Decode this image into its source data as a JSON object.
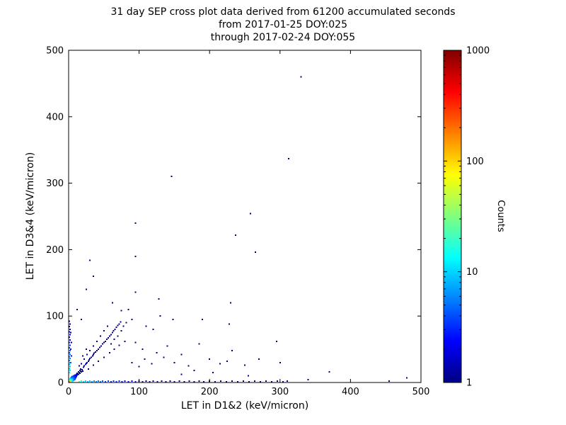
{
  "figure": {
    "background": "#ffffff",
    "frame_color": "#000000"
  },
  "chart_data": {
    "type": "scatter",
    "title": "31 day SEP cross plot data derived from 61200 accumulated seconds",
    "subtitle_from": "from 2017-01-25 DOY:025",
    "subtitle_through": "through 2017-02-24 DOY:055",
    "xlabel": "LET in D1&2 (keV/micron)",
    "ylabel": "LET in D3&4 (keV/micron)",
    "xlim": [
      0,
      500
    ],
    "ylim": [
      0,
      500
    ],
    "xticks": [
      0,
      100,
      200,
      300,
      400,
      500
    ],
    "yticks": [
      0,
      100,
      200,
      300,
      400,
      500
    ],
    "grid": false,
    "colorbar": {
      "label": "Counts",
      "scale": "log",
      "range": [
        1,
        1000
      ],
      "ticks": [
        1,
        10,
        100,
        1000
      ],
      "colormap": "jet",
      "stops": [
        {
          "pos": 0.0,
          "color": "#000080"
        },
        {
          "pos": 0.125,
          "color": "#0000ff"
        },
        {
          "pos": 0.375,
          "color": "#00ffff"
        },
        {
          "pos": 0.625,
          "color": "#ffff00"
        },
        {
          "pos": 0.875,
          "color": "#ff0000"
        },
        {
          "pos": 1.0,
          "color": "#800000"
        }
      ]
    },
    "points": [
      [
        0.5,
        0.5,
        800
      ],
      [
        1,
        1,
        400
      ],
      [
        2,
        1,
        200
      ],
      [
        1,
        2,
        200
      ],
      [
        2,
        2,
        150
      ],
      [
        3,
        1,
        100
      ],
      [
        1,
        3,
        100
      ],
      [
        3,
        2,
        80
      ],
      [
        2,
        3,
        80
      ],
      [
        3,
        3,
        60
      ],
      [
        4,
        1,
        50
      ],
      [
        1,
        4,
        50
      ],
      [
        4,
        2,
        40
      ],
      [
        2,
        4,
        40
      ],
      [
        4,
        3,
        30
      ],
      [
        3,
        4,
        30
      ],
      [
        4,
        4,
        25
      ],
      [
        5,
        1,
        22
      ],
      [
        1,
        5,
        22
      ],
      [
        5,
        3,
        18
      ],
      [
        3,
        5,
        18
      ],
      [
        5,
        5,
        15
      ],
      [
        6,
        2,
        12
      ],
      [
        2,
        6,
        12
      ],
      [
        6,
        4,
        10
      ],
      [
        4,
        6,
        10
      ],
      [
        6,
        6,
        9
      ],
      [
        7,
        3,
        8
      ],
      [
        3,
        7,
        8
      ],
      [
        7,
        5,
        7
      ],
      [
        5,
        7,
        7
      ],
      [
        7,
        7,
        6
      ],
      [
        8,
        4,
        5
      ],
      [
        4,
        8,
        5
      ],
      [
        8,
        6,
        5
      ],
      [
        6,
        8,
        5
      ],
      [
        8,
        8,
        4
      ],
      [
        9,
        5,
        4
      ],
      [
        5,
        9,
        4
      ],
      [
        9,
        9,
        3
      ],
      [
        10,
        7,
        3
      ],
      [
        7,
        10,
        3
      ],
      [
        10,
        10,
        3
      ],
      [
        11,
        9,
        2
      ],
      [
        9,
        11,
        2
      ],
      [
        12,
        11,
        2
      ],
      [
        11,
        12,
        2
      ],
      [
        13,
        13,
        2
      ],
      [
        14,
        12,
        1
      ],
      [
        12,
        14,
        1
      ],
      [
        15,
        15,
        2
      ],
      [
        16,
        14,
        1
      ],
      [
        14,
        16,
        1
      ],
      [
        17,
        17,
        1
      ],
      [
        18,
        16,
        1
      ],
      [
        16,
        18,
        1
      ],
      [
        19,
        19,
        1
      ],
      [
        20,
        17,
        1
      ],
      [
        17,
        20,
        1
      ],
      [
        21,
        23,
        2
      ],
      [
        22,
        25,
        1
      ],
      [
        24,
        27,
        2
      ],
      [
        25,
        29,
        1
      ],
      [
        26,
        30,
        2
      ],
      [
        28,
        32,
        1
      ],
      [
        29,
        34,
        1
      ],
      [
        30,
        36,
        2
      ],
      [
        32,
        38,
        1
      ],
      [
        34,
        40,
        1
      ],
      [
        35,
        42,
        1
      ],
      [
        36,
        44,
        1
      ],
      [
        38,
        46,
        1
      ],
      [
        40,
        48,
        1
      ],
      [
        42,
        50,
        1
      ],
      [
        44,
        53,
        1
      ],
      [
        46,
        55,
        1
      ],
      [
        48,
        58,
        1
      ],
      [
        50,
        60,
        1
      ],
      [
        52,
        62,
        1
      ],
      [
        54,
        65,
        1
      ],
      [
        56,
        67,
        1
      ],
      [
        58,
        70,
        1
      ],
      [
        60,
        72,
        1
      ],
      [
        62,
        75,
        1
      ],
      [
        64,
        78,
        1
      ],
      [
        66,
        80,
        1
      ],
      [
        68,
        83,
        1
      ],
      [
        70,
        86,
        1
      ],
      [
        72,
        88,
        1
      ],
      [
        74,
        91,
        1
      ],
      [
        18,
        28,
        1
      ],
      [
        22,
        35,
        1
      ],
      [
        26,
        42,
        1
      ],
      [
        30,
        48,
        1
      ],
      [
        15,
        25,
        1
      ],
      [
        20,
        40,
        1
      ],
      [
        25,
        50,
        1
      ],
      [
        35,
        55,
        1
      ],
      [
        40,
        62,
        1
      ],
      [
        45,
        70,
        1
      ],
      [
        50,
        78,
        1
      ],
      [
        55,
        85,
        1
      ],
      [
        28,
        20,
        1
      ],
      [
        35,
        26,
        1
      ],
      [
        42,
        32,
        1
      ],
      [
        50,
        38,
        1
      ],
      [
        58,
        45,
        1
      ],
      [
        65,
        50,
        1
      ],
      [
        72,
        56,
        1
      ],
      [
        80,
        62,
        1
      ],
      [
        60,
        58,
        1
      ],
      [
        65,
        65,
        1
      ],
      [
        70,
        70,
        1
      ],
      [
        75,
        78,
        1
      ],
      [
        78,
        85,
        1
      ],
      [
        82,
        90,
        1
      ],
      [
        15,
        1,
        20
      ],
      [
        18,
        2,
        15
      ],
      [
        21,
        1,
        12
      ],
      [
        24,
        2,
        10
      ],
      [
        27,
        1,
        9
      ],
      [
        30,
        2,
        8
      ],
      [
        33,
        1,
        7
      ],
      [
        36,
        2,
        6
      ],
      [
        39,
        1,
        6
      ],
      [
        42,
        2,
        5
      ],
      [
        45,
        1,
        5
      ],
      [
        48,
        2,
        4
      ],
      [
        52,
        1,
        4
      ],
      [
        56,
        2,
        4
      ],
      [
        60,
        1,
        3
      ],
      [
        64,
        2,
        3
      ],
      [
        68,
        1,
        3
      ],
      [
        72,
        2,
        3
      ],
      [
        76,
        1,
        2
      ],
      [
        80,
        2,
        2
      ],
      [
        85,
        1,
        2
      ],
      [
        90,
        2,
        2
      ],
      [
        95,
        1,
        2
      ],
      [
        100,
        2,
        2
      ],
      [
        105,
        1,
        1
      ],
      [
        110,
        2,
        1
      ],
      [
        115,
        1,
        1
      ],
      [
        120,
        2,
        1
      ],
      [
        126,
        1,
        1
      ],
      [
        132,
        2,
        1
      ],
      [
        138,
        1,
        1
      ],
      [
        144,
        2,
        1
      ],
      [
        150,
        1,
        1
      ],
      [
        157,
        2,
        1
      ],
      [
        164,
        1,
        1
      ],
      [
        171,
        2,
        1
      ],
      [
        178,
        1,
        1
      ],
      [
        185,
        2,
        1
      ],
      [
        192,
        1,
        1
      ],
      [
        200,
        2,
        1
      ],
      [
        208,
        1,
        1
      ],
      [
        216,
        2,
        1
      ],
      [
        224,
        1,
        1
      ],
      [
        232,
        2,
        1
      ],
      [
        240,
        1,
        1
      ],
      [
        248,
        2,
        1
      ],
      [
        256,
        1,
        1
      ],
      [
        264,
        2,
        1
      ],
      [
        272,
        1,
        1
      ],
      [
        280,
        2,
        1
      ],
      [
        288,
        1,
        1
      ],
      [
        296,
        2,
        1
      ],
      [
        304,
        1,
        1
      ],
      [
        310,
        2,
        1
      ],
      [
        340,
        4,
        1
      ],
      [
        370,
        16,
        1
      ],
      [
        455,
        2,
        1
      ],
      [
        480,
        7,
        1
      ],
      [
        1,
        15,
        15
      ],
      [
        2,
        18,
        12
      ],
      [
        1,
        21,
        10
      ],
      [
        2,
        24,
        9
      ],
      [
        1,
        27,
        8
      ],
      [
        2,
        30,
        7
      ],
      [
        1,
        33,
        6
      ],
      [
        2,
        36,
        6
      ],
      [
        1,
        39,
        5
      ],
      [
        2,
        42,
        5
      ],
      [
        1,
        45,
        4
      ],
      [
        2,
        48,
        4
      ],
      [
        1,
        52,
        3
      ],
      [
        2,
        56,
        3
      ],
      [
        1,
        60,
        3
      ],
      [
        2,
        64,
        2
      ],
      [
        1,
        68,
        2
      ],
      [
        2,
        72,
        2
      ],
      [
        1,
        76,
        2
      ],
      [
        2,
        80,
        1
      ],
      [
        1,
        84,
        1
      ],
      [
        2,
        88,
        1
      ],
      [
        1,
        92,
        1
      ],
      [
        3,
        50,
        2
      ],
      [
        3,
        30,
        4
      ],
      [
        4,
        40,
        2
      ],
      [
        4,
        60,
        1
      ],
      [
        3,
        75,
        1
      ],
      [
        90,
        30,
        1
      ],
      [
        100,
        24,
        1
      ],
      [
        108,
        35,
        1
      ],
      [
        95,
        60,
        1
      ],
      [
        105,
        50,
        1
      ],
      [
        118,
        28,
        1
      ],
      [
        125,
        45,
        1
      ],
      [
        135,
        38,
        1
      ],
      [
        140,
        55,
        1
      ],
      [
        150,
        30,
        1
      ],
      [
        160,
        42,
        1
      ],
      [
        170,
        25,
        1
      ],
      [
        185,
        58,
        1
      ],
      [
        200,
        35,
        1
      ],
      [
        215,
        28,
        1
      ],
      [
        90,
        95,
        1
      ],
      [
        110,
        85,
        1
      ],
      [
        130,
        100,
        1
      ],
      [
        85,
        110,
        1
      ],
      [
        120,
        80,
        1
      ],
      [
        330,
        460,
        1
      ],
      [
        312,
        337,
        1
      ],
      [
        146,
        310,
        1
      ],
      [
        95,
        240,
        1
      ],
      [
        258,
        254,
        1
      ],
      [
        237,
        222,
        1
      ],
      [
        265,
        196,
        1
      ],
      [
        30,
        184,
        1
      ],
      [
        35,
        160,
        1
      ],
      [
        95,
        190,
        1
      ],
      [
        95,
        136,
        1
      ],
      [
        128,
        126,
        1
      ],
      [
        62,
        120,
        1
      ],
      [
        230,
        120,
        1
      ],
      [
        75,
        108,
        1
      ],
      [
        190,
        95,
        1
      ],
      [
        228,
        88,
        1
      ],
      [
        295,
        62,
        1
      ],
      [
        232,
        48,
        1
      ],
      [
        250,
        26,
        1
      ],
      [
        270,
        35,
        1
      ],
      [
        225,
        32,
        1
      ],
      [
        205,
        15,
        1
      ],
      [
        255,
        10,
        1
      ],
      [
        300,
        30,
        1
      ],
      [
        160,
        12,
        1
      ],
      [
        178,
        18,
        1
      ],
      [
        148,
        95,
        1
      ],
      [
        25,
        140,
        1
      ],
      [
        18,
        95,
        1
      ],
      [
        12,
        110,
        1
      ]
    ]
  }
}
